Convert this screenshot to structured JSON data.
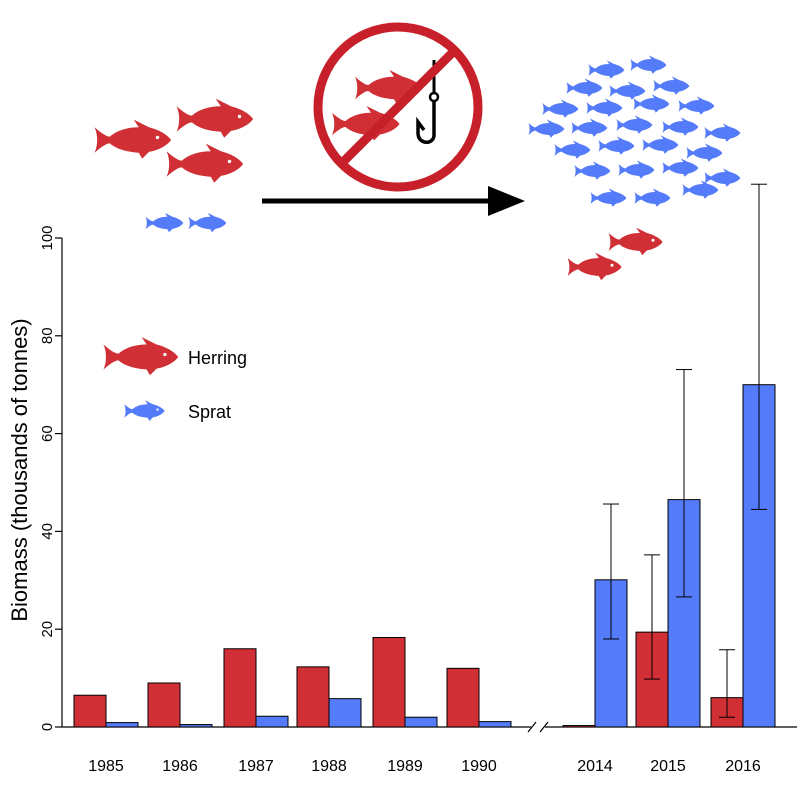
{
  "chart_data": {
    "type": "bar",
    "xlabel": "",
    "ylabel": "Biomass (thousands of tonnes)",
    "ylim": [
      0,
      100
    ],
    "yticks": [
      0,
      20,
      40,
      60,
      80,
      100
    ],
    "grid": false,
    "legend_position": "left, upper-middle",
    "axis_break": "between 1990 and 2014",
    "categories": [
      "1985",
      "1986",
      "1987",
      "1988",
      "1989",
      "1990",
      "2014",
      "2015",
      "2016"
    ],
    "series": [
      {
        "name": "Herring",
        "color": "#d03035",
        "values": [
          6.5,
          9.0,
          16.0,
          12.3,
          18.3,
          12.0,
          0.3,
          19.4,
          6.0
        ],
        "error_bars": [
          null,
          null,
          null,
          null,
          null,
          null,
          null,
          [
            9.8,
            35.2
          ],
          [
            2.0,
            15.8
          ]
        ]
      },
      {
        "name": "Sprat",
        "color": "#547bfa",
        "values": [
          0.9,
          0.5,
          2.2,
          5.8,
          2.0,
          1.1,
          30.1,
          46.5,
          70.0
        ],
        "error_bars": [
          null,
          null,
          null,
          null,
          null,
          null,
          [
            18.0,
            45.6
          ],
          [
            26.6,
            73.1
          ],
          [
            44.5,
            111.0
          ]
        ]
      }
    ]
  },
  "illustration": {
    "description_icons": [
      "herring-fish-icon",
      "sprat-fish-icon",
      "no-fishing-sign-icon",
      "arrow-right-icon"
    ],
    "no_fishing_sign_color": "#c8202a",
    "arrow_color": "#000000"
  }
}
